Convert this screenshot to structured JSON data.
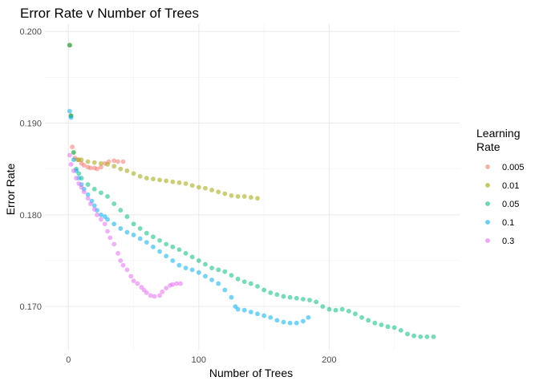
{
  "chart_data": {
    "type": "scatter",
    "title": "Error Rate v Number of Trees",
    "xlabel": "Number of Trees",
    "ylabel": "Error Rate",
    "xlim": [
      -18,
      300
    ],
    "ylim": [
      0.1652,
      0.2008
    ],
    "xticks": [
      0,
      100,
      200
    ],
    "yticks": [
      0.17,
      0.18,
      0.19,
      0.2
    ],
    "ytick_labels": [
      "0.170",
      "0.180",
      "0.190",
      "0.200"
    ],
    "grid": true,
    "legend": {
      "title_lines": [
        "Learning",
        " Rate"
      ],
      "position": "right"
    },
    "series": [
      {
        "name": "0.005",
        "color": "#F8766D",
        "points": [
          [
            1,
            0.1985
          ],
          [
            2,
            0.1908
          ],
          [
            3,
            0.1874
          ],
          [
            5,
            0.1862
          ],
          [
            8,
            0.186
          ],
          [
            10,
            0.1856
          ],
          [
            12,
            0.1854
          ],
          [
            15,
            0.1852
          ],
          [
            17,
            0.1851
          ],
          [
            20,
            0.1851
          ],
          [
            22,
            0.185
          ],
          [
            25,
            0.1852
          ],
          [
            28,
            0.1856
          ],
          [
            31,
            0.1858
          ],
          [
            35,
            0.1859
          ],
          [
            38,
            0.1858
          ],
          [
            42,
            0.1858
          ]
        ]
      },
      {
        "name": "0.01",
        "color": "#A3A500",
        "points": [
          [
            1,
            0.1985
          ],
          [
            2,
            0.1908
          ],
          [
            4,
            0.1868
          ],
          [
            7,
            0.186
          ],
          [
            10,
            0.186
          ],
          [
            15,
            0.1858
          ],
          [
            20,
            0.1857
          ],
          [
            25,
            0.1856
          ],
          [
            30,
            0.1855
          ],
          [
            35,
            0.1853
          ],
          [
            40,
            0.185
          ],
          [
            45,
            0.1848
          ],
          [
            50,
            0.1845
          ],
          [
            55,
            0.1842
          ],
          [
            60,
            0.184
          ],
          [
            65,
            0.1839
          ],
          [
            70,
            0.1838
          ],
          [
            75,
            0.1837
          ],
          [
            80,
            0.1836
          ],
          [
            85,
            0.1835
          ],
          [
            90,
            0.1834
          ],
          [
            95,
            0.1832
          ],
          [
            100,
            0.183
          ],
          [
            105,
            0.1829
          ],
          [
            110,
            0.1827
          ],
          [
            115,
            0.1825
          ],
          [
            120,
            0.1823
          ],
          [
            125,
            0.1821
          ],
          [
            130,
            0.182
          ],
          [
            135,
            0.182
          ],
          [
            140,
            0.1819
          ],
          [
            145,
            0.1818
          ]
        ]
      },
      {
        "name": "0.05",
        "color": "#00BF7D",
        "points": [
          [
            1,
            0.1985
          ],
          [
            2,
            0.1908
          ],
          [
            4,
            0.1868
          ],
          [
            6,
            0.185
          ],
          [
            8,
            0.1845
          ],
          [
            10,
            0.184
          ],
          [
            15,
            0.1833
          ],
          [
            20,
            0.1828
          ],
          [
            25,
            0.1824
          ],
          [
            30,
            0.182
          ],
          [
            35,
            0.1812
          ],
          [
            40,
            0.1805
          ],
          [
            45,
            0.1798
          ],
          [
            50,
            0.179
          ],
          [
            55,
            0.1785
          ],
          [
            60,
            0.178
          ],
          [
            65,
            0.1776
          ],
          [
            70,
            0.1772
          ],
          [
            75,
            0.1768
          ],
          [
            80,
            0.1765
          ],
          [
            85,
            0.1762
          ],
          [
            90,
            0.1758
          ],
          [
            95,
            0.1754
          ],
          [
            100,
            0.175
          ],
          [
            105,
            0.1746
          ],
          [
            110,
            0.1742
          ],
          [
            115,
            0.174
          ],
          [
            120,
            0.1738
          ],
          [
            125,
            0.1734
          ],
          [
            130,
            0.173
          ],
          [
            135,
            0.1727
          ],
          [
            140,
            0.1725
          ],
          [
            145,
            0.1722
          ],
          [
            150,
            0.1718
          ],
          [
            155,
            0.1715
          ],
          [
            160,
            0.1713
          ],
          [
            165,
            0.1711
          ],
          [
            170,
            0.171
          ],
          [
            175,
            0.1709
          ],
          [
            180,
            0.1708
          ],
          [
            185,
            0.1707
          ],
          [
            190,
            0.1705
          ],
          [
            195,
            0.17
          ],
          [
            200,
            0.1697
          ],
          [
            205,
            0.1696
          ],
          [
            210,
            0.1697
          ],
          [
            215,
            0.1695
          ],
          [
            220,
            0.1692
          ],
          [
            225,
            0.1688
          ],
          [
            230,
            0.1685
          ],
          [
            235,
            0.1682
          ],
          [
            240,
            0.168
          ],
          [
            245,
            0.1678
          ],
          [
            250,
            0.1677
          ],
          [
            255,
            0.1674
          ],
          [
            260,
            0.167
          ],
          [
            265,
            0.1668
          ],
          [
            270,
            0.1667
          ],
          [
            275,
            0.1667
          ],
          [
            280,
            0.1667
          ]
        ]
      },
      {
        "name": "0.1",
        "color": "#00B0F6",
        "points": [
          [
            1,
            0.1913
          ],
          [
            2,
            0.1906
          ],
          [
            4,
            0.186
          ],
          [
            6,
            0.1848
          ],
          [
            8,
            0.184
          ],
          [
            10,
            0.1833
          ],
          [
            12,
            0.1828
          ],
          [
            15,
            0.1822
          ],
          [
            18,
            0.1815
          ],
          [
            20,
            0.181
          ],
          [
            22,
            0.1805
          ],
          [
            25,
            0.18
          ],
          [
            28,
            0.1798
          ],
          [
            30,
            0.1795
          ],
          [
            35,
            0.179
          ],
          [
            40,
            0.1785
          ],
          [
            45,
            0.1781
          ],
          [
            50,
            0.1778
          ],
          [
            55,
            0.1774
          ],
          [
            60,
            0.177
          ],
          [
            65,
            0.1765
          ],
          [
            70,
            0.176
          ],
          [
            75,
            0.1755
          ],
          [
            80,
            0.175
          ],
          [
            85,
            0.1745
          ],
          [
            90,
            0.1742
          ],
          [
            95,
            0.174
          ],
          [
            100,
            0.1737
          ],
          [
            105,
            0.1733
          ],
          [
            110,
            0.1729
          ],
          [
            115,
            0.1725
          ],
          [
            120,
            0.1718
          ],
          [
            125,
            0.171
          ],
          [
            128,
            0.17
          ],
          [
            130,
            0.1697
          ],
          [
            135,
            0.1696
          ],
          [
            140,
            0.1694
          ],
          [
            145,
            0.1692
          ],
          [
            150,
            0.169
          ],
          [
            155,
            0.1688
          ],
          [
            160,
            0.1685
          ],
          [
            165,
            0.1683
          ],
          [
            170,
            0.1682
          ],
          [
            175,
            0.1682
          ],
          [
            180,
            0.1684
          ],
          [
            184,
            0.1688
          ]
        ]
      },
      {
        "name": "0.3",
        "color": "#E76BF3",
        "points": [
          [
            1,
            0.1865
          ],
          [
            2,
            0.1855
          ],
          [
            4,
            0.1848
          ],
          [
            6,
            0.184
          ],
          [
            8,
            0.1834
          ],
          [
            10,
            0.183
          ],
          [
            12,
            0.1825
          ],
          [
            15,
            0.1818
          ],
          [
            17,
            0.1812
          ],
          [
            20,
            0.1806
          ],
          [
            22,
            0.18
          ],
          [
            25,
            0.1795
          ],
          [
            28,
            0.179
          ],
          [
            30,
            0.1782
          ],
          [
            32,
            0.1775
          ],
          [
            35,
            0.1768
          ],
          [
            38,
            0.1758
          ],
          [
            40,
            0.175
          ],
          [
            42,
            0.1745
          ],
          [
            45,
            0.174
          ],
          [
            48,
            0.1733
          ],
          [
            50,
            0.1728
          ],
          [
            53,
            0.1725
          ],
          [
            56,
            0.1721
          ],
          [
            58,
            0.1718
          ],
          [
            60,
            0.1715
          ],
          [
            63,
            0.1712
          ],
          [
            66,
            0.1711
          ],
          [
            70,
            0.1712
          ],
          [
            72,
            0.1716
          ],
          [
            75,
            0.172
          ],
          [
            78,
            0.1723
          ],
          [
            80,
            0.1724
          ],
          [
            83,
            0.1725
          ],
          [
            86,
            0.1725
          ]
        ]
      }
    ]
  }
}
